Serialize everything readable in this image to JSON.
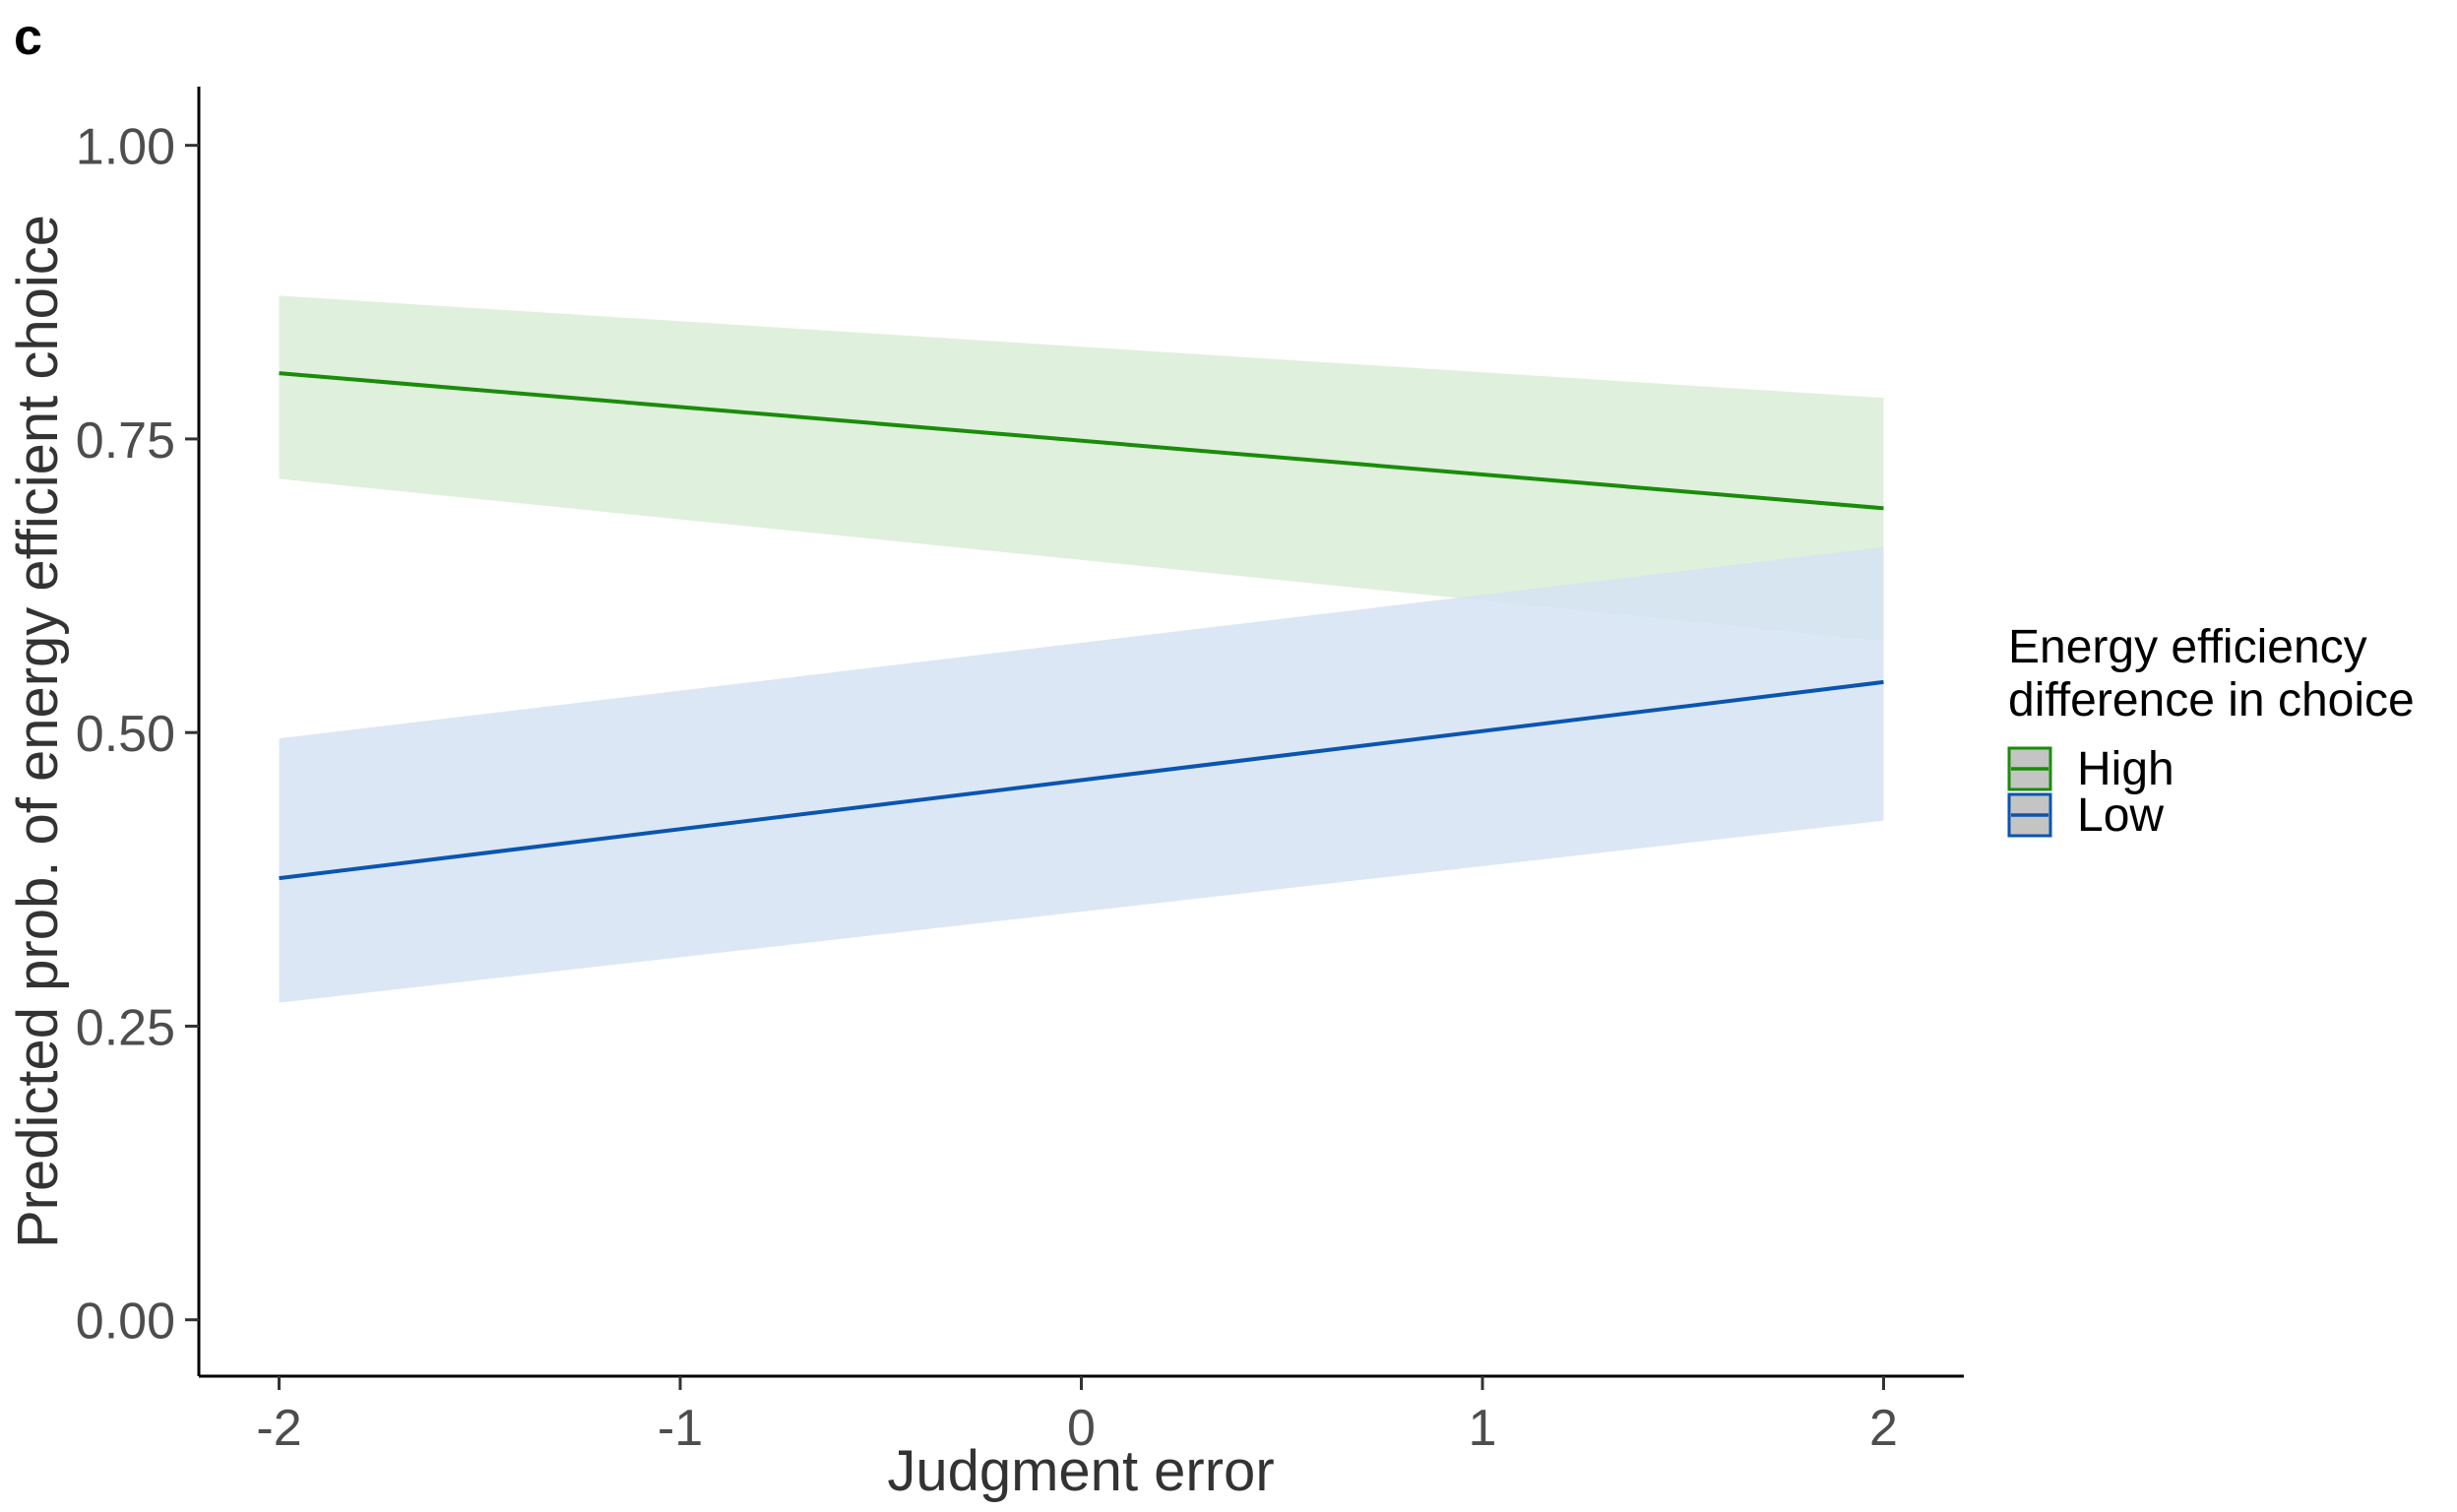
{
  "panel_label": "c",
  "chart_data": {
    "type": "line",
    "title": "",
    "xlabel": "Judgment error",
    "ylabel": "Predicted prob. of energy efficient choice",
    "xlim": [
      -2.2,
      2.2
    ],
    "ylim": [
      -0.048,
      1.05
    ],
    "x_ticks": [
      -2,
      -1,
      0,
      1,
      2
    ],
    "x_tick_labels": [
      "-2",
      "-1",
      "0",
      "1",
      "2"
    ],
    "y_ticks": [
      0,
      0.25,
      0.5,
      0.75,
      1
    ],
    "y_tick_labels": [
      "0.00",
      "0.25",
      "0.50",
      "0.75",
      "1.00"
    ],
    "grid": false,
    "legend": {
      "title_lines": [
        "Energy efficiency",
        "difference in choice"
      ],
      "placement": "right",
      "items": [
        "High",
        "Low"
      ]
    },
    "series": [
      {
        "name": "High",
        "color": "#1a8c0a",
        "band_color": "#d9edd6",
        "x": [
          -2,
          2
        ],
        "y": [
          0.806,
          0.691
        ],
        "lower": [
          0.716,
          0.578
        ],
        "upper": [
          0.872,
          0.785
        ]
      },
      {
        "name": "Low",
        "color": "#0a55b0",
        "band_color": "#d6e3f3",
        "x": [
          -2,
          2
        ],
        "y": [
          0.376,
          0.543
        ],
        "lower": [
          0.27,
          0.425
        ],
        "upper": [
          0.495,
          0.658
        ]
      }
    ]
  }
}
